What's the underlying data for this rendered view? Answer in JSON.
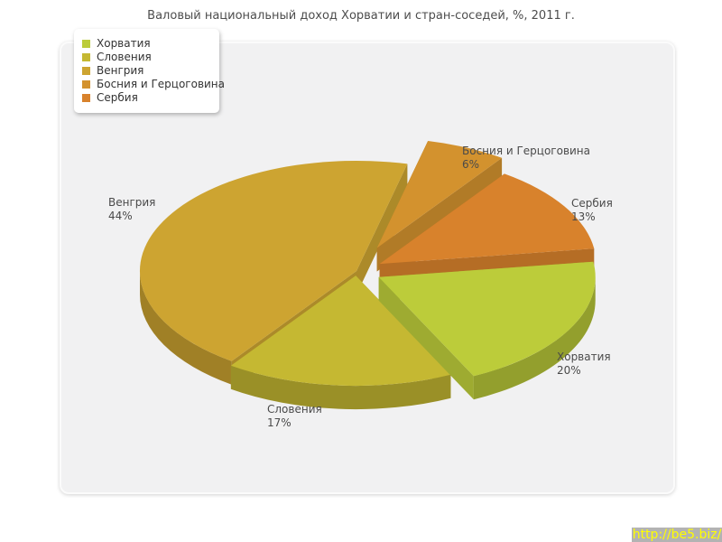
{
  "page": {
    "title": "Валовый национальный доход Хорватии и стран-соседей, %, 2011 г."
  },
  "chart_data": {
    "type": "pie",
    "style": "3d-exploded-pie",
    "title": "Валовый национальный доход Хорватии и стран-соседей, %, 2011 г.",
    "legend_position": "top-left",
    "unit": "%",
    "slices": [
      {
        "label": "Хорватия",
        "value": 20,
        "pct_label": "20%",
        "color": "#bccc3a",
        "exploded": true
      },
      {
        "label": "Словения",
        "value": 17,
        "pct_label": "17%",
        "color": "#c5b832",
        "exploded": false
      },
      {
        "label": "Венгрия",
        "value": 44,
        "pct_label": "44%",
        "color": "#cda431",
        "exploded": false
      },
      {
        "label": "Босния и Герцоговина",
        "value": 6,
        "pct_label": "6%",
        "color": "#d3922e",
        "exploded": true
      },
      {
        "label": "Сербия",
        "value": 13,
        "pct_label": "13%",
        "color": "#d8822c",
        "exploded": true
      }
    ]
  },
  "watermark": {
    "text": "http://be5.biz/",
    "bg_color": "#b3b3b3",
    "text_color": "#ffff00"
  }
}
